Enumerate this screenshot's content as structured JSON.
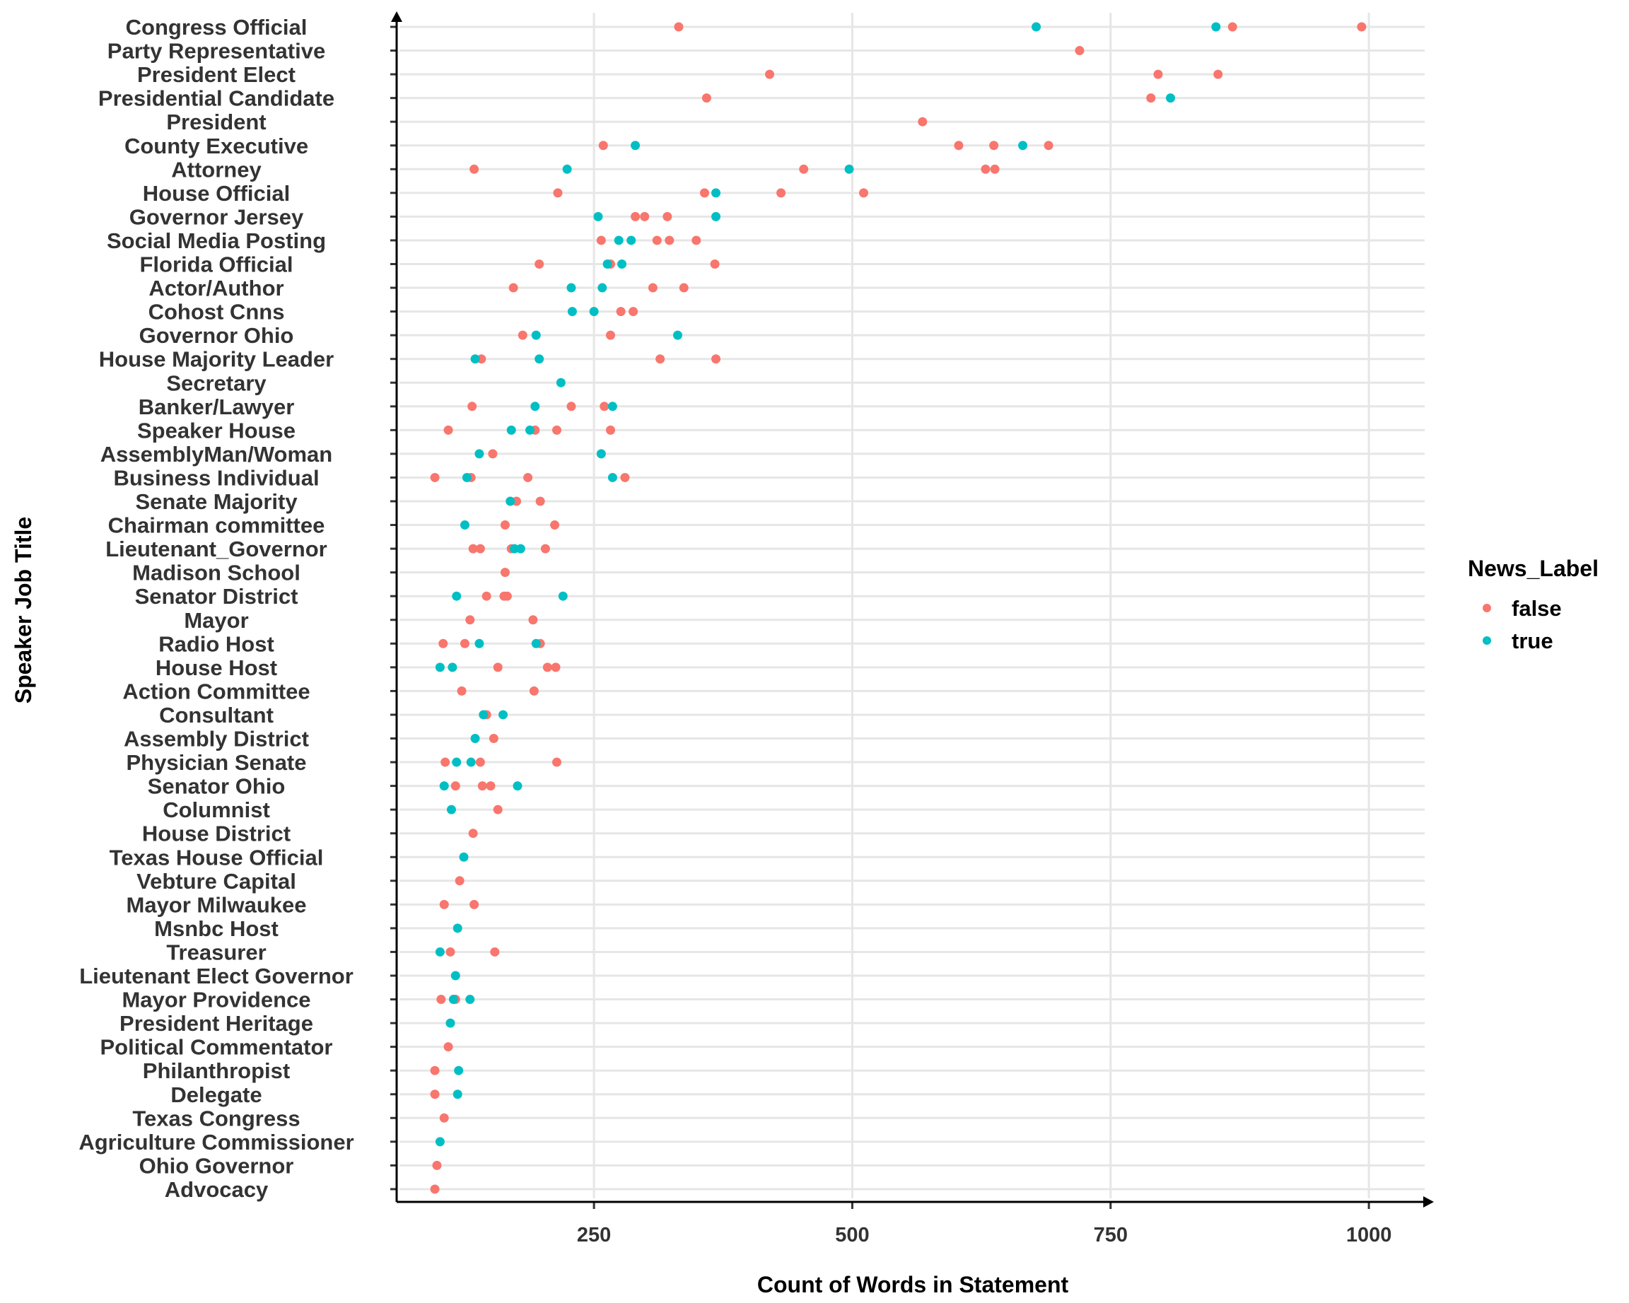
{
  "chart_data": {
    "type": "scatter",
    "title": "",
    "xlabel": "Count of Words in Statement",
    "ylabel": "Speaker Job Title",
    "xlim": [
      59,
      1054
    ],
    "x_ticks": [
      "250",
      "500",
      "750",
      "1000"
    ],
    "x_tick_values": [
      250,
      500,
      750,
      1000
    ],
    "grid": true,
    "legend": {
      "title": "News_Label",
      "position": "right",
      "entries": [
        {
          "label": "false",
          "color": "#F8766D"
        },
        {
          "label": "true",
          "color": "#00BFC4"
        }
      ]
    },
    "categories": [
      "Congress Official",
      "Party Representative",
      "President Elect",
      "Presidential Candidate",
      "President",
      "County Executive",
      "Attorney",
      "House Official",
      "Governor Jersey",
      "Social Media Posting",
      "Florida Official",
      "Actor/Author",
      "Cohost Cnns",
      "Governor Ohio",
      "House Majority Leader",
      "Secretary",
      "Banker/Lawyer",
      "Speaker House",
      "AssemblyMan/Woman",
      "Business Individual",
      "Senate Majority",
      "Chairman committee",
      "Lieutenant_Governor",
      "Madison School",
      "Senator District",
      "Mayor",
      "Radio Host",
      "House Host",
      "Action Committee",
      "Consultant",
      "Assembly District",
      "Physician Senate",
      "Senator Ohio",
      "Columnist",
      "House District",
      "Texas House Official",
      "Vebture Capital",
      "Mayor Milwaukee",
      "Msnbc Host",
      "Treasurer",
      "Lieutenant Elect Governor",
      "Mayor Providence",
      "President Heritage",
      "Political Commentator",
      "Philanthropist",
      "Delegate",
      "Texas Congress",
      "Agriculture Commissioner",
      "Ohio Governor",
      "Advocacy"
    ],
    "series": [
      {
        "name": "false",
        "points": [
          {
            "category": "Congress Official",
            "x": [
              332,
              868,
              993
            ]
          },
          {
            "category": "Party Representative",
            "x": [
              720
            ]
          },
          {
            "category": "President Elect",
            "x": [
              420,
              796,
              854
            ]
          },
          {
            "category": "Presidential Candidate",
            "x": [
              359,
              789
            ]
          },
          {
            "category": "President",
            "x": [
              568
            ]
          },
          {
            "category": "County Executive",
            "x": [
              259,
              603,
              637,
              690
            ]
          },
          {
            "category": "Attorney",
            "x": [
              134,
              453,
              629,
              638
            ]
          },
          {
            "category": "House Official",
            "x": [
              215,
              357,
              431,
              511
            ]
          },
          {
            "category": "Governor Jersey",
            "x": [
              290,
              299,
              321
            ]
          },
          {
            "category": "Social Media Posting",
            "x": [
              257,
              311,
              323,
              349
            ]
          },
          {
            "category": "Florida Official",
            "x": [
              197,
              266,
              367
            ]
          },
          {
            "category": "Actor/Author",
            "x": [
              172,
              307,
              337
            ]
          },
          {
            "category": "Cohost Cnns",
            "x": [
              276,
              288
            ]
          },
          {
            "category": "Governor Ohio",
            "x": [
              181,
              266
            ]
          },
          {
            "category": "House Majority Leader",
            "x": [
              141,
              314,
              368
            ]
          },
          {
            "category": "Banker/Lawyer",
            "x": [
              132,
              228,
              260
            ]
          },
          {
            "category": "Speaker House",
            "x": [
              109,
              193,
              214,
              266
            ]
          },
          {
            "category": "AssemblyMan/Woman",
            "x": [
              152
            ]
          },
          {
            "category": "Business Individual",
            "x": [
              96,
              131,
              186,
              280
            ]
          },
          {
            "category": "Senate Majority",
            "x": [
              175,
              198
            ]
          },
          {
            "category": "Chairman committee",
            "x": [
              164,
              212
            ]
          },
          {
            "category": "Lieutenant_Governor",
            "x": [
              133,
              140,
              170,
              203
            ]
          },
          {
            "category": "Madison School",
            "x": [
              164
            ]
          },
          {
            "category": "Senator District",
            "x": [
              146,
              163,
              166
            ]
          },
          {
            "category": "Mayor",
            "x": [
              130,
              191
            ]
          },
          {
            "category": "Radio Host",
            "x": [
              104,
              125,
              198
            ]
          },
          {
            "category": "House Host",
            "x": [
              157,
              205,
              213
            ]
          },
          {
            "category": "Action Committee",
            "x": [
              122,
              192
            ]
          },
          {
            "category": "Consultant",
            "x": [
              146
            ]
          },
          {
            "category": "Assembly District",
            "x": [
              153
            ]
          },
          {
            "category": "Physician Senate",
            "x": [
              106,
              140,
              214
            ]
          },
          {
            "category": "Senator Ohio",
            "x": [
              116,
              142,
              150
            ]
          },
          {
            "category": "Columnist",
            "x": [
              157
            ]
          },
          {
            "category": "House District",
            "x": [
              133
            ]
          },
          {
            "category": "Vebture Capital",
            "x": [
              120
            ]
          },
          {
            "category": "Mayor Milwaukee",
            "x": [
              105,
              134
            ]
          },
          {
            "category": "Treasurer",
            "x": [
              111,
              154
            ]
          },
          {
            "category": "Mayor Providence",
            "x": [
              102,
              116
            ]
          },
          {
            "category": "Political Commentator",
            "x": [
              109
            ]
          },
          {
            "category": "Philanthropist",
            "x": [
              96
            ]
          },
          {
            "category": "Delegate",
            "x": [
              96
            ]
          },
          {
            "category": "Texas Congress",
            "x": [
              105
            ]
          },
          {
            "category": "Ohio Governor",
            "x": [
              98
            ]
          },
          {
            "category": "Advocacy",
            "x": [
              96
            ]
          }
        ]
      },
      {
        "name": "true",
        "points": [
          {
            "category": "Congress Official",
            "x": [
              678,
              852
            ]
          },
          {
            "category": "Presidential Candidate",
            "x": [
              808
            ]
          },
          {
            "category": "County Executive",
            "x": [
              290,
              665
            ]
          },
          {
            "category": "Attorney",
            "x": [
              224,
              497
            ]
          },
          {
            "category": "House Official",
            "x": [
              368
            ]
          },
          {
            "category": "Governor Jersey",
            "x": [
              254,
              368
            ]
          },
          {
            "category": "Social Media Posting",
            "x": [
              274,
              286
            ]
          },
          {
            "category": "Florida Official",
            "x": [
              263,
              277
            ]
          },
          {
            "category": "Actor/Author",
            "x": [
              228,
              258
            ]
          },
          {
            "category": "Cohost Cnns",
            "x": [
              229,
              250
            ]
          },
          {
            "category": "Governor Ohio",
            "x": [
              194,
              331
            ]
          },
          {
            "category": "House Majority Leader",
            "x": [
              135,
              197
            ]
          },
          {
            "category": "Secretary",
            "x": [
              218
            ]
          },
          {
            "category": "Banker/Lawyer",
            "x": [
              193,
              268
            ]
          },
          {
            "category": "Speaker House",
            "x": [
              170,
              188
            ]
          },
          {
            "category": "AssemblyMan/Woman",
            "x": [
              139,
              257
            ]
          },
          {
            "category": "Business Individual",
            "x": [
              127,
              268
            ]
          },
          {
            "category": "Senate Majority",
            "x": [
              169
            ]
          },
          {
            "category": "Chairman committee",
            "x": [
              125
            ]
          },
          {
            "category": "Lieutenant_Governor",
            "x": [
              173,
              179
            ]
          },
          {
            "category": "Senator District",
            "x": [
              117,
              220
            ]
          },
          {
            "category": "Radio Host",
            "x": [
              139,
              194
            ]
          },
          {
            "category": "House Host",
            "x": [
              101,
              113
            ]
          },
          {
            "category": "Consultant",
            "x": [
              143,
              162
            ]
          },
          {
            "category": "Assembly District",
            "x": [
              135
            ]
          },
          {
            "category": "Physician Senate",
            "x": [
              117,
              131
            ]
          },
          {
            "category": "Senator Ohio",
            "x": [
              105,
              176
            ]
          },
          {
            "category": "Columnist",
            "x": [
              112
            ]
          },
          {
            "category": "Texas House Official",
            "x": [
              124
            ]
          },
          {
            "category": "Msnbc Host",
            "x": [
              118
            ]
          },
          {
            "category": "Treasurer",
            "x": [
              101
            ]
          },
          {
            "category": "Lieutenant Elect Governor",
            "x": [
              116
            ]
          },
          {
            "category": "Mayor Providence",
            "x": [
              114,
              130
            ]
          },
          {
            "category": "President Heritage",
            "x": [
              111
            ]
          },
          {
            "category": "Philanthropist",
            "x": [
              119
            ]
          },
          {
            "category": "Delegate",
            "x": [
              118
            ]
          },
          {
            "category": "Agriculture Commissioner",
            "x": [
              101
            ]
          }
        ]
      }
    ]
  }
}
